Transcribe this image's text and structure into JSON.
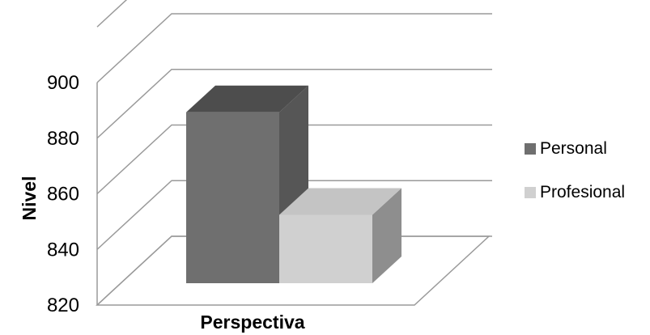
{
  "chart_data": {
    "type": "bar",
    "categories": [
      ""
    ],
    "series": [
      {
        "name": "Personal",
        "values": [
          885
        ]
      },
      {
        "name": "Profesional",
        "values": [
          846
        ]
      }
    ],
    "xlabel": "Perspectiva",
    "ylabel": "Nivel",
    "ylim": [
      820,
      900
    ],
    "yticks": [
      820,
      840,
      860,
      880,
      900
    ],
    "ytick_labels": [
      "820",
      "840",
      "860",
      "880",
      "900"
    ],
    "grid": true,
    "legend_position": "right",
    "style": "3d-column",
    "colors": {
      "Personal": {
        "front": "#6f6f6f",
        "top": "#4d4d4d",
        "side": "#565656"
      },
      "Profesional": {
        "front": "#d0d0d0",
        "top": "#c4c4c4",
        "side": "#8e8e8e"
      },
      "gridline": "#9a9a9a",
      "wall_edge": "#9a9a9a"
    }
  }
}
